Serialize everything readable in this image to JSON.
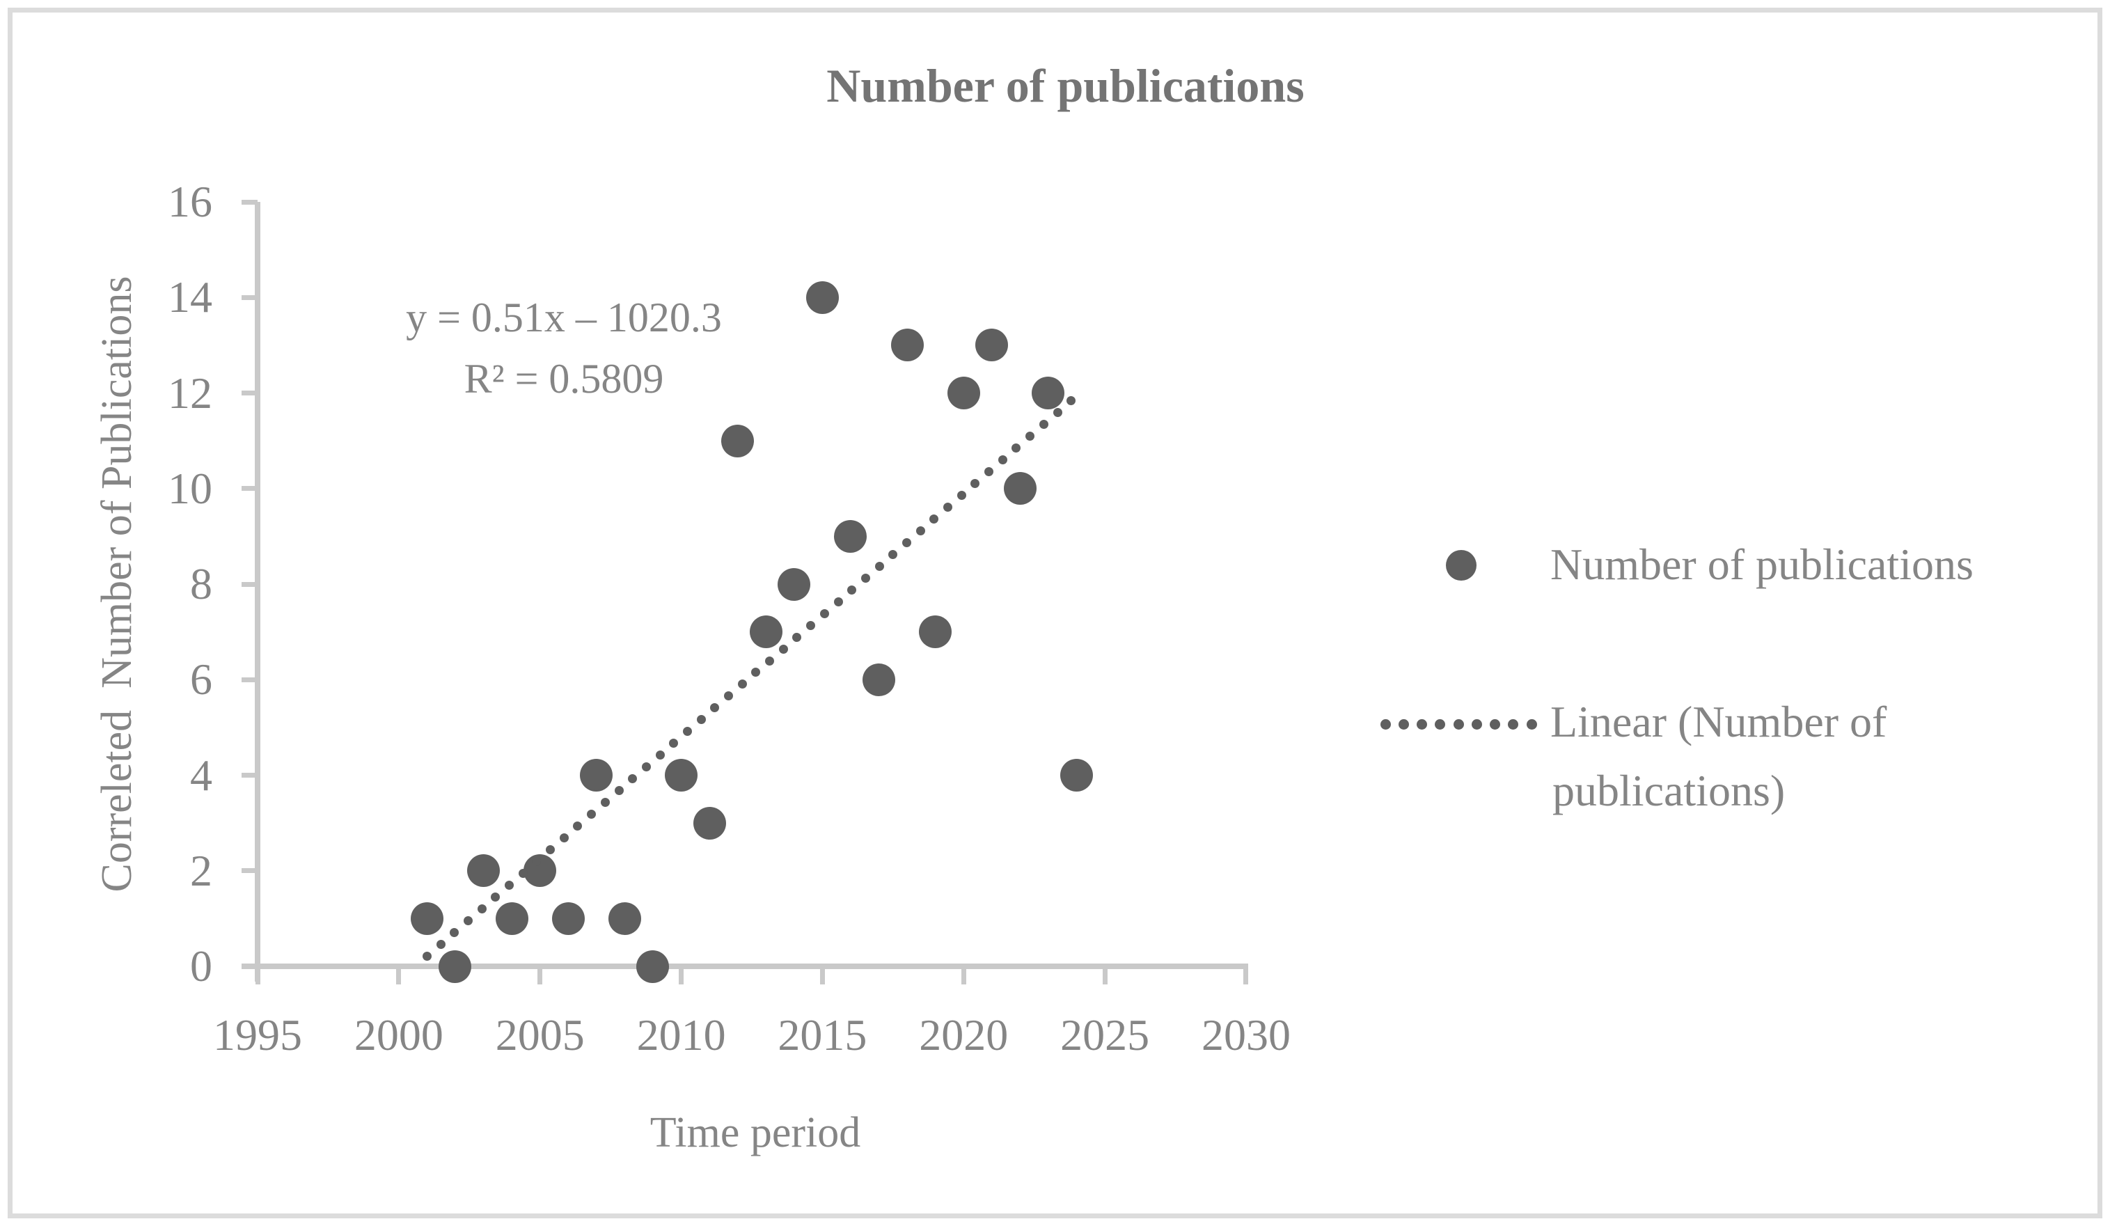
{
  "chart_data": {
    "type": "scatter",
    "title": "Number of publications",
    "xlabel": "Time period",
    "ylabel": "Correleted  Number of Publications",
    "x": [
      2001,
      2002,
      2003,
      2004,
      2005,
      2006,
      2007,
      2008,
      2009,
      2010,
      2011,
      2012,
      2013,
      2014,
      2015,
      2016,
      2017,
      2018,
      2019,
      2020,
      2021,
      2022,
      2023,
      2024
    ],
    "series": [
      {
        "name": "Number of publications",
        "values": [
          1,
          0,
          2,
          1,
          2,
          1,
          4,
          1,
          0,
          4,
          3,
          11,
          7,
          8,
          14,
          9,
          6,
          13,
          7,
          12,
          13,
          10,
          12,
          4
        ]
      }
    ],
    "trendline": {
      "type": "linear",
      "slope": 0.51,
      "intercept": -1020.3,
      "x_start": 2001,
      "x_end": 2024,
      "style": "dotted"
    },
    "annotation": {
      "line1": "y = 0.51x – 1020.3",
      "line2": "R² = 0.5809"
    },
    "xlim": [
      1995,
      2030
    ],
    "ylim": [
      0,
      16
    ],
    "xticks": [
      1995,
      2000,
      2005,
      2010,
      2015,
      2020,
      2025,
      2030
    ],
    "yticks": [
      0,
      2,
      4,
      6,
      8,
      10,
      12,
      14,
      16
    ],
    "grid": false,
    "legend_position": "right",
    "legend": {
      "items": [
        {
          "label": "Number of publications",
          "marker": "dot"
        },
        {
          "label": "Linear (Number of publications)",
          "marker": "dotted-line",
          "line1": "Linear (Number of",
          "line2": "publications)"
        }
      ]
    }
  },
  "colors": {
    "marker": "#5f5f5f",
    "trendline": "#5f5f5f",
    "text": "#858585",
    "title": "#747474",
    "axis": "#c9c9c9",
    "frame": "#dcdcdc",
    "background": "#ffffff"
  }
}
